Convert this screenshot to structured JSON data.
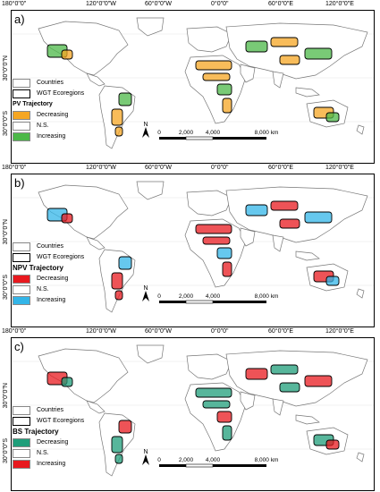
{
  "graticule": {
    "lon_labels": [
      "180°0\"0\"",
      "120°0\"0\"W",
      "60°0\"0\"W",
      "0°0\"0\"",
      "60°0\"0\"E",
      "120°0\"0\"E"
    ],
    "lat_labels": [
      "30°0\"0\"N",
      "30°0\"0\"S"
    ]
  },
  "legend_common": {
    "countries": "Countries",
    "ecoregions": "WGT Ecoregions"
  },
  "scale_bar": {
    "ticks": [
      "0",
      "2,000",
      "4,000",
      "8,000 km"
    ]
  },
  "north_arrow": "N",
  "panels": [
    {
      "label": "a)",
      "legend_title": "PV Trajectory",
      "classes": [
        {
          "label": "Decreasing",
          "color": "#f5a623"
        },
        {
          "label": "N.S.",
          "color": "#ffffff"
        },
        {
          "label": "Increasing",
          "color": "#4cb848"
        }
      ]
    },
    {
      "label": "b)",
      "legend_title": "NPV Trajectory",
      "classes": [
        {
          "label": "Decreasing",
          "color": "#e8191f"
        },
        {
          "label": "N.S.",
          "color": "#ffffff"
        },
        {
          "label": "Increasing",
          "color": "#33b5e8"
        }
      ]
    },
    {
      "label": "c)",
      "legend_title": "BS Trajectory",
      "classes": [
        {
          "label": "Decreasing",
          "color": "#1f9e7a"
        },
        {
          "label": "N.S.",
          "color": "#ffffff"
        },
        {
          "label": "Increasing",
          "color": "#e8191f"
        }
      ]
    }
  ]
}
